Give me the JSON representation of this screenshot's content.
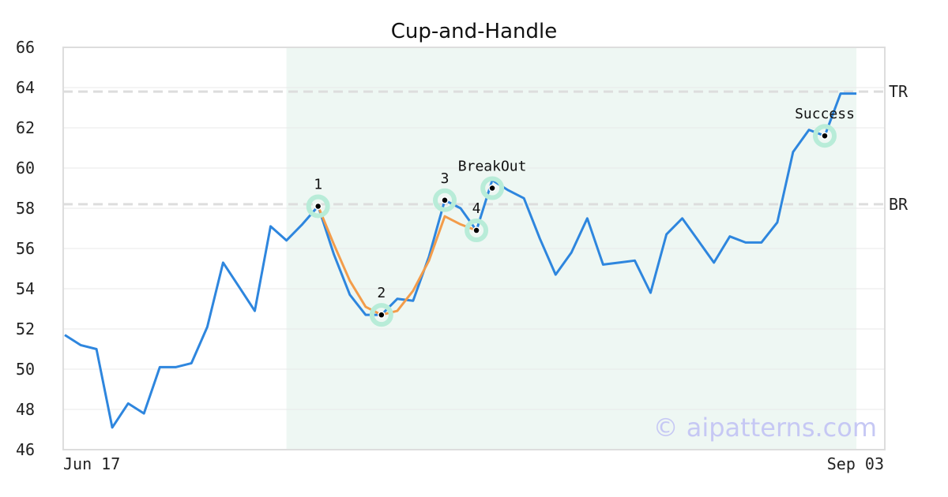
{
  "chart_data": {
    "type": "line",
    "title": "Cup-and-Handle",
    "watermark": "© aipatterns.com",
    "ylim": [
      46,
      66
    ],
    "yticks": [
      "46",
      "48",
      "50",
      "52",
      "54",
      "56",
      "58",
      "60",
      "62",
      "64",
      "66"
    ],
    "xticks": [
      "Jun 17",
      "Sep 03"
    ],
    "grid": true,
    "pattern_range": [
      14,
      50
    ],
    "series": [
      {
        "color": "#2e86de",
        "values": [
          51.7,
          51.2,
          51.0,
          47.1,
          48.3,
          47.8,
          50.1,
          50.1,
          50.3,
          52.1,
          55.3,
          54.1,
          52.9,
          57.1,
          56.4,
          57.2,
          58.1,
          55.7,
          53.7,
          52.7,
          52.7,
          53.5,
          53.4,
          55.6,
          58.4,
          58.0,
          56.9,
          59.4,
          58.9,
          58.5,
          56.5,
          54.7,
          55.8,
          57.5,
          55.2,
          55.3,
          55.4,
          53.8,
          56.7,
          57.5,
          56.4,
          55.3,
          56.6,
          56.3,
          56.3,
          57.3,
          60.8,
          61.9,
          61.6,
          63.7,
          63.7
        ]
      },
      {
        "color": "#f39c4a",
        "points": [
          [
            16,
            58.1
          ],
          [
            17,
            56.2
          ],
          [
            18,
            54.4
          ],
          [
            19,
            53.1
          ],
          [
            20,
            52.7
          ],
          [
            21,
            52.9
          ],
          [
            22,
            53.9
          ],
          [
            23,
            55.4
          ],
          [
            24,
            57.6
          ],
          [
            25,
            57.2
          ],
          [
            26,
            56.9
          ]
        ]
      }
    ],
    "levels": [
      {
        "label": "TR",
        "value": 63.8,
        "color": "#dddddd"
      },
      {
        "label": "BR",
        "value": 58.2,
        "color": "#dddddd"
      }
    ],
    "markers": [
      {
        "label": "1",
        "x": 16,
        "y": 58.1,
        "label_pos": "above"
      },
      {
        "label": "2",
        "x": 20,
        "y": 52.7,
        "label_pos": "above"
      },
      {
        "label": "3",
        "x": 24,
        "y": 58.4,
        "label_pos": "above"
      },
      {
        "label": "4",
        "x": 26,
        "y": 56.9,
        "label_pos": "above"
      },
      {
        "label": "BreakOut",
        "x": 27,
        "y": 59.0,
        "label_pos": "above"
      },
      {
        "label": "Success",
        "x": 48,
        "y": 61.6,
        "label_pos": "above"
      }
    ],
    "colors": {
      "pattern_band": "#eef7f3",
      "marker_ring": "#b8ecd8",
      "marker_dot": "#000000",
      "frame": "#dddddd",
      "grid": "#e8e8e8"
    }
  }
}
